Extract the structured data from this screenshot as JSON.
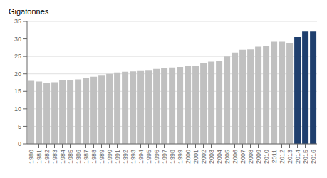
{
  "chart_data": {
    "type": "bar",
    "y_label": "Gigatonnes",
    "categories": [
      "1980",
      "1981",
      "1982",
      "1983",
      "1984",
      "1985",
      "1986",
      "1987",
      "1988",
      "1989",
      "1990",
      "1991",
      "1992",
      "1993",
      "1994",
      "1995",
      "1996",
      "1997",
      "1998",
      "1999",
      "2000",
      "2001",
      "2002",
      "2003",
      "2004",
      "2005",
      "2006",
      "2007",
      "2008",
      "2009",
      "2010",
      "2011",
      "2012",
      "2013",
      "2014",
      "2015",
      "2016"
    ],
    "values": [
      18.0,
      17.8,
      17.5,
      17.6,
      18.1,
      18.3,
      18.4,
      18.8,
      19.2,
      19.5,
      20.0,
      20.4,
      20.6,
      20.7,
      20.8,
      20.9,
      21.4,
      21.7,
      21.8,
      22.0,
      22.2,
      22.4,
      23.1,
      23.5,
      23.8,
      25.0,
      26.1,
      26.9,
      27.0,
      27.8,
      28.1,
      29.2,
      29.2,
      28.8,
      30.5,
      32.1,
      32.1
    ],
    "colors": [
      "#c0c0c0",
      "#c0c0c0",
      "#c0c0c0",
      "#c0c0c0",
      "#c0c0c0",
      "#c0c0c0",
      "#c0c0c0",
      "#c0c0c0",
      "#c0c0c0",
      "#c0c0c0",
      "#c0c0c0",
      "#c0c0c0",
      "#c0c0c0",
      "#c0c0c0",
      "#c0c0c0",
      "#c0c0c0",
      "#c0c0c0",
      "#c0c0c0",
      "#c0c0c0",
      "#c0c0c0",
      "#c0c0c0",
      "#c0c0c0",
      "#c0c0c0",
      "#c0c0c0",
      "#c0c0c0",
      "#c0c0c0",
      "#c0c0c0",
      "#c0c0c0",
      "#c0c0c0",
      "#c0c0c0",
      "#c0c0c0",
      "#c0c0c0",
      "#c0c0c0",
      "#c0c0c0",
      "#1f3f6e",
      "#1f3f6e",
      "#1f3f6e"
    ],
    "ylim": [
      0,
      35
    ],
    "yticks": [
      0,
      5,
      10,
      15,
      20,
      25,
      30,
      35
    ],
    "grid": true
  }
}
